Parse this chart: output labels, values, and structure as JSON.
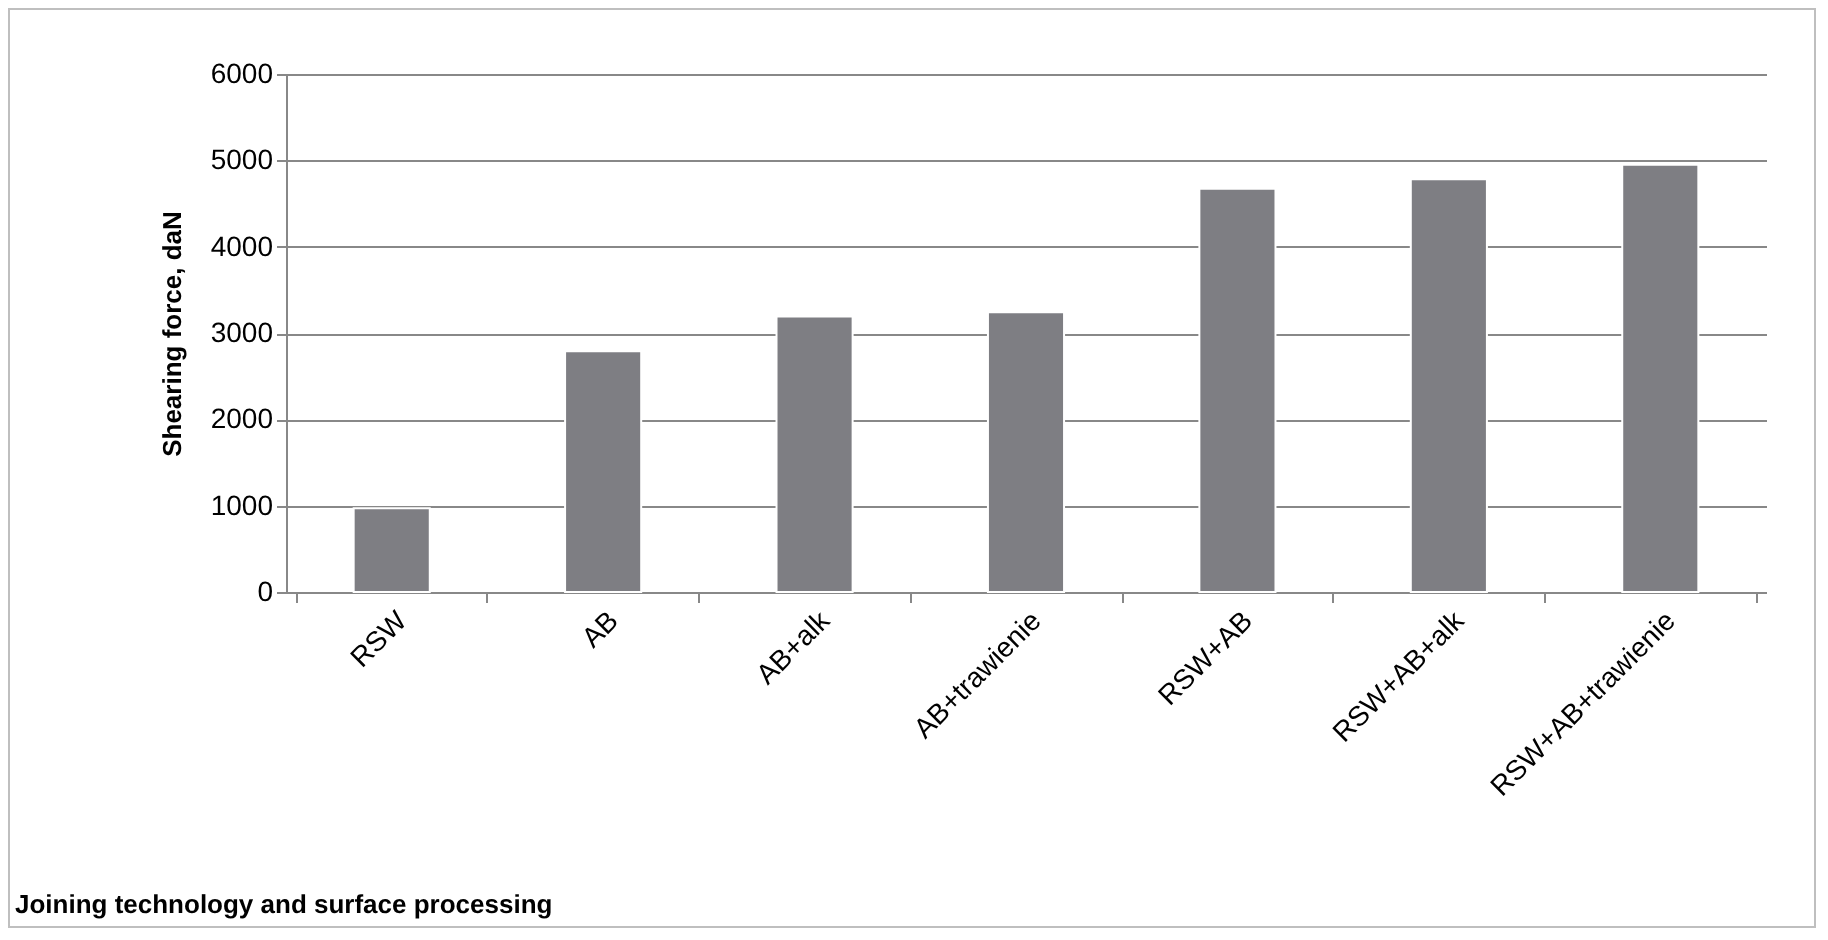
{
  "chart_data": {
    "type": "bar",
    "xlabel": "Joining technology and surface processing",
    "ylabel": "Shearing force, daN",
    "categories": [
      "RSW",
      "AB",
      "AB+alk",
      "AB+trawienie",
      "RSW+AB",
      "RSW+AB+alk",
      "RSW+AB+trawienie"
    ],
    "values": [
      970,
      2790,
      3190,
      3240,
      4670,
      4780,
      4950
    ],
    "color": "#7e7e83",
    "ylim": [
      0,
      6000
    ],
    "yticks": [
      0,
      1000,
      2000,
      3000,
      4000,
      5000,
      6000
    ],
    "grid": "y"
  }
}
